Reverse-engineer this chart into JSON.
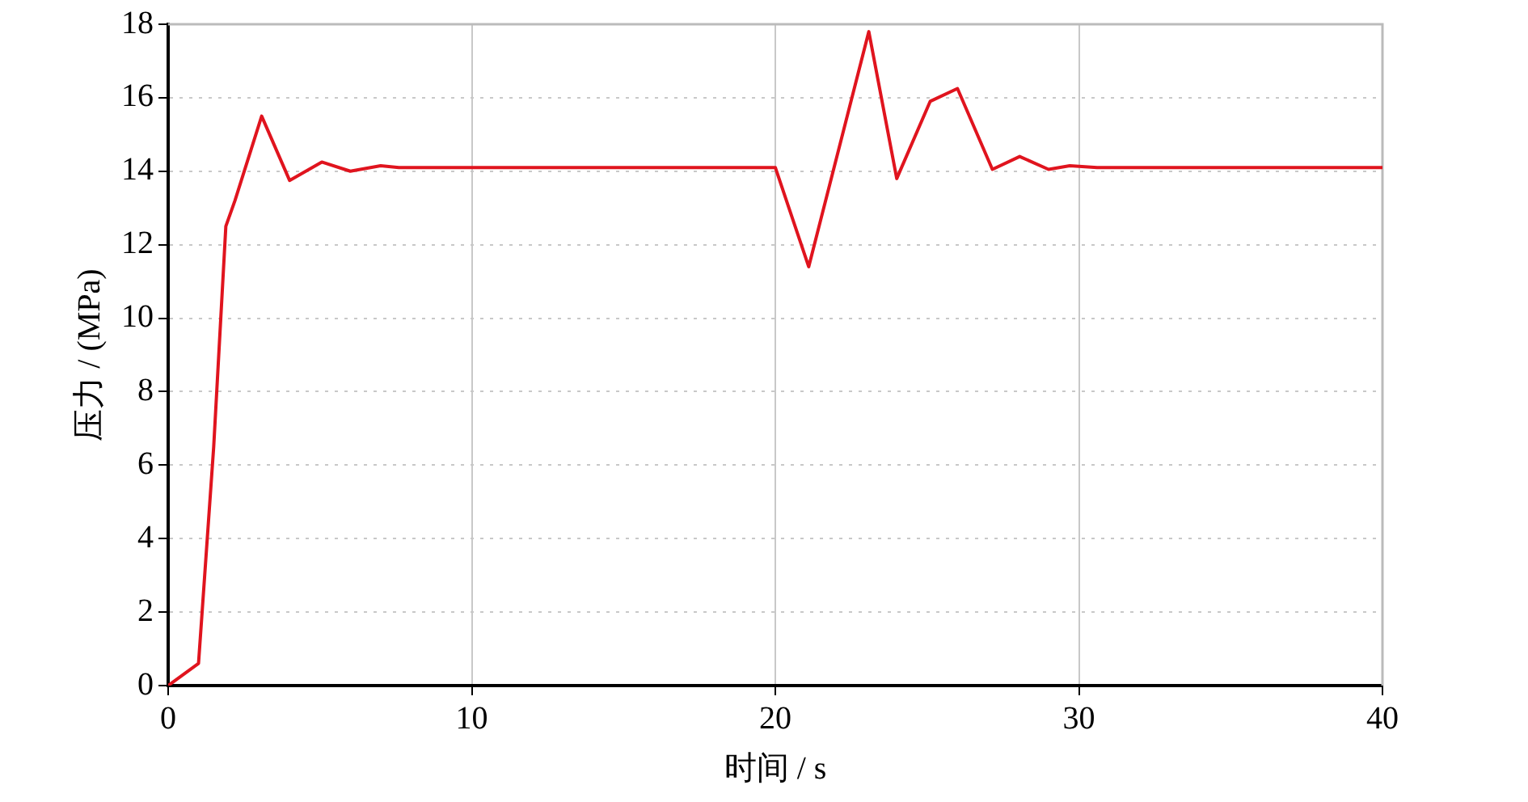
{
  "chart_data": {
    "type": "line",
    "xlabel": "时间 / s",
    "ylabel": "压力 / (MPa)",
    "xlim": [
      0,
      40
    ],
    "xticks": [
      0,
      10,
      20,
      30,
      40
    ],
    "ylim": [
      0,
      18
    ],
    "yticks": [
      0,
      2,
      4,
      6,
      8,
      10,
      12,
      14,
      16,
      18
    ],
    "grid": true,
    "legend": false,
    "marker": "none",
    "line_style": "solid",
    "series": [
      {
        "color": "#e0141e",
        "x": [
          0,
          1.0,
          1.5,
          1.9,
          2.2,
          3.08,
          4.0,
          5.06,
          6.0,
          7.0,
          7.6,
          20.0,
          21.1,
          23.08,
          24.0,
          25.1,
          26.0,
          27.15,
          28.05,
          29.0,
          29.7,
          30.6,
          40
        ],
        "values": [
          0,
          0.6,
          6.5,
          12.5,
          13.2,
          15.5,
          13.75,
          14.25,
          14.0,
          14.15,
          14.1,
          14.1,
          11.4,
          17.8,
          13.8,
          15.9,
          16.25,
          14.05,
          14.4,
          14.05,
          14.15,
          14.1,
          14.1
        ]
      }
    ]
  }
}
